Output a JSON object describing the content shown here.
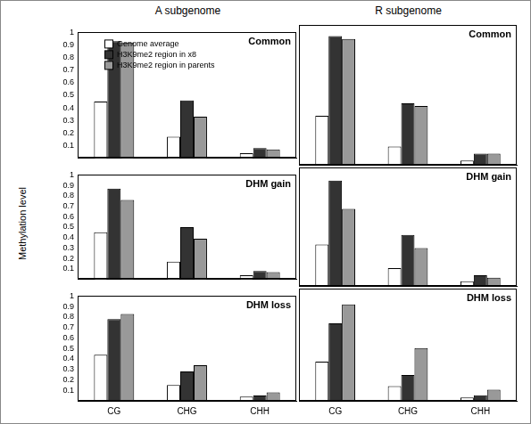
{
  "column_titles": [
    "A subgenome",
    "R subgenome"
  ],
  "ylabel": "Methylation level",
  "chart_data": [
    {
      "type": "bar",
      "title": "Common",
      "categories": [
        "CG",
        "CHG",
        "CHH"
      ],
      "series": [
        {
          "name": "Genome average",
          "color": "#ffffff",
          "values": [
            0.45,
            0.17,
            0.04
          ]
        },
        {
          "name": "H3K9me2 region in x8",
          "color": "#333333",
          "values": [
            0.93,
            0.46,
            0.08
          ]
        },
        {
          "name": "H3K9me2 region in parents",
          "color": "#999999",
          "values": [
            0.92,
            0.33,
            0.07
          ]
        }
      ],
      "ylim": [
        0,
        1
      ],
      "yticks": [
        0.1,
        0.2,
        0.3,
        0.4,
        0.5,
        0.6,
        0.7,
        0.8,
        0.9,
        1
      ],
      "grid": false,
      "legend": "upper left",
      "tick_labels": "y"
    },
    {
      "type": "bar",
      "title": "Common",
      "categories": [
        "CG",
        "CHG",
        "CHH"
      ],
      "series": [
        {
          "name": "Genome average",
          "color": "#ffffff",
          "values": [
            0.35,
            0.13,
            0.03
          ]
        },
        {
          "name": "H3K9me2 region in x8",
          "color": "#333333",
          "values": [
            0.92,
            0.44,
            0.08
          ]
        },
        {
          "name": "H3K9me2 region in parents",
          "color": "#999999",
          "values": [
            0.9,
            0.42,
            0.08
          ]
        }
      ],
      "ylim": [
        0,
        1
      ],
      "yticks": [
        0.1,
        0.2,
        0.3,
        0.4,
        0.5,
        0.6,
        0.7,
        0.8,
        0.9,
        1
      ],
      "grid": false,
      "tick_labels": false
    },
    {
      "type": "bar",
      "title": "DHM gain",
      "categories": [
        "CG",
        "CHG",
        "CHH"
      ],
      "series": [
        {
          "name": "Genome average",
          "color": "#ffffff",
          "values": [
            0.45,
            0.17,
            0.04
          ]
        },
        {
          "name": "H3K9me2 region in x8",
          "color": "#333333",
          "values": [
            0.87,
            0.5,
            0.08
          ]
        },
        {
          "name": "H3K9me2 region in parents",
          "color": "#999999",
          "values": [
            0.76,
            0.39,
            0.07
          ]
        }
      ],
      "ylim": [
        0,
        1
      ],
      "yticks": [
        0.1,
        0.2,
        0.3,
        0.4,
        0.5,
        0.6,
        0.7,
        0.8,
        0.9,
        1
      ],
      "grid": false,
      "tick_labels": "y"
    },
    {
      "type": "bar",
      "title": "DHM gain",
      "categories": [
        "CG",
        "CHG",
        "CHH"
      ],
      "series": [
        {
          "name": "Genome average",
          "color": "#ffffff",
          "values": [
            0.35,
            0.15,
            0.04
          ]
        },
        {
          "name": "H3K9me2 region in x8",
          "color": "#333333",
          "values": [
            0.89,
            0.43,
            0.09
          ]
        },
        {
          "name": "H3K9me2 region in parents",
          "color": "#999999",
          "values": [
            0.65,
            0.32,
            0.07
          ]
        }
      ],
      "ylim": [
        0,
        1
      ],
      "yticks": [
        0.1,
        0.2,
        0.3,
        0.4,
        0.5,
        0.6,
        0.7,
        0.8,
        0.9,
        1
      ],
      "grid": false,
      "tick_labels": false
    },
    {
      "type": "bar",
      "title": "DHM loss",
      "categories": [
        "CG",
        "CHG",
        "CHH"
      ],
      "series": [
        {
          "name": "Genome average",
          "color": "#ffffff",
          "values": [
            0.44,
            0.15,
            0.04
          ]
        },
        {
          "name": "H3K9me2 region in x8",
          "color": "#333333",
          "values": [
            0.78,
            0.28,
            0.05
          ]
        },
        {
          "name": "H3K9me2 region in parents",
          "color": "#999999",
          "values": [
            0.83,
            0.34,
            0.08
          ]
        }
      ],
      "ylim": [
        0,
        1
      ],
      "yticks": [
        0.1,
        0.2,
        0.3,
        0.4,
        0.5,
        0.6,
        0.7,
        0.8,
        0.9,
        1
      ],
      "grid": false
    },
    {
      "type": "bar",
      "title": "DHM loss",
      "categories": [
        "CG",
        "CHG",
        "CHH"
      ],
      "series": [
        {
          "name": "Genome average",
          "color": "#ffffff",
          "values": [
            0.35,
            0.13,
            0.03
          ]
        },
        {
          "name": "H3K9me2 region in x8",
          "color": "#333333",
          "values": [
            0.69,
            0.23,
            0.05
          ]
        },
        {
          "name": "H3K9me2 region in parents",
          "color": "#999999",
          "values": [
            0.86,
            0.47,
            0.1
          ]
        }
      ],
      "ylim": [
        0,
        1
      ],
      "yticks": [
        0.1,
        0.2,
        0.3,
        0.4,
        0.5,
        0.6,
        0.7,
        0.8,
        0.9,
        1
      ],
      "grid": false,
      "tick_labels": "x"
    }
  ]
}
